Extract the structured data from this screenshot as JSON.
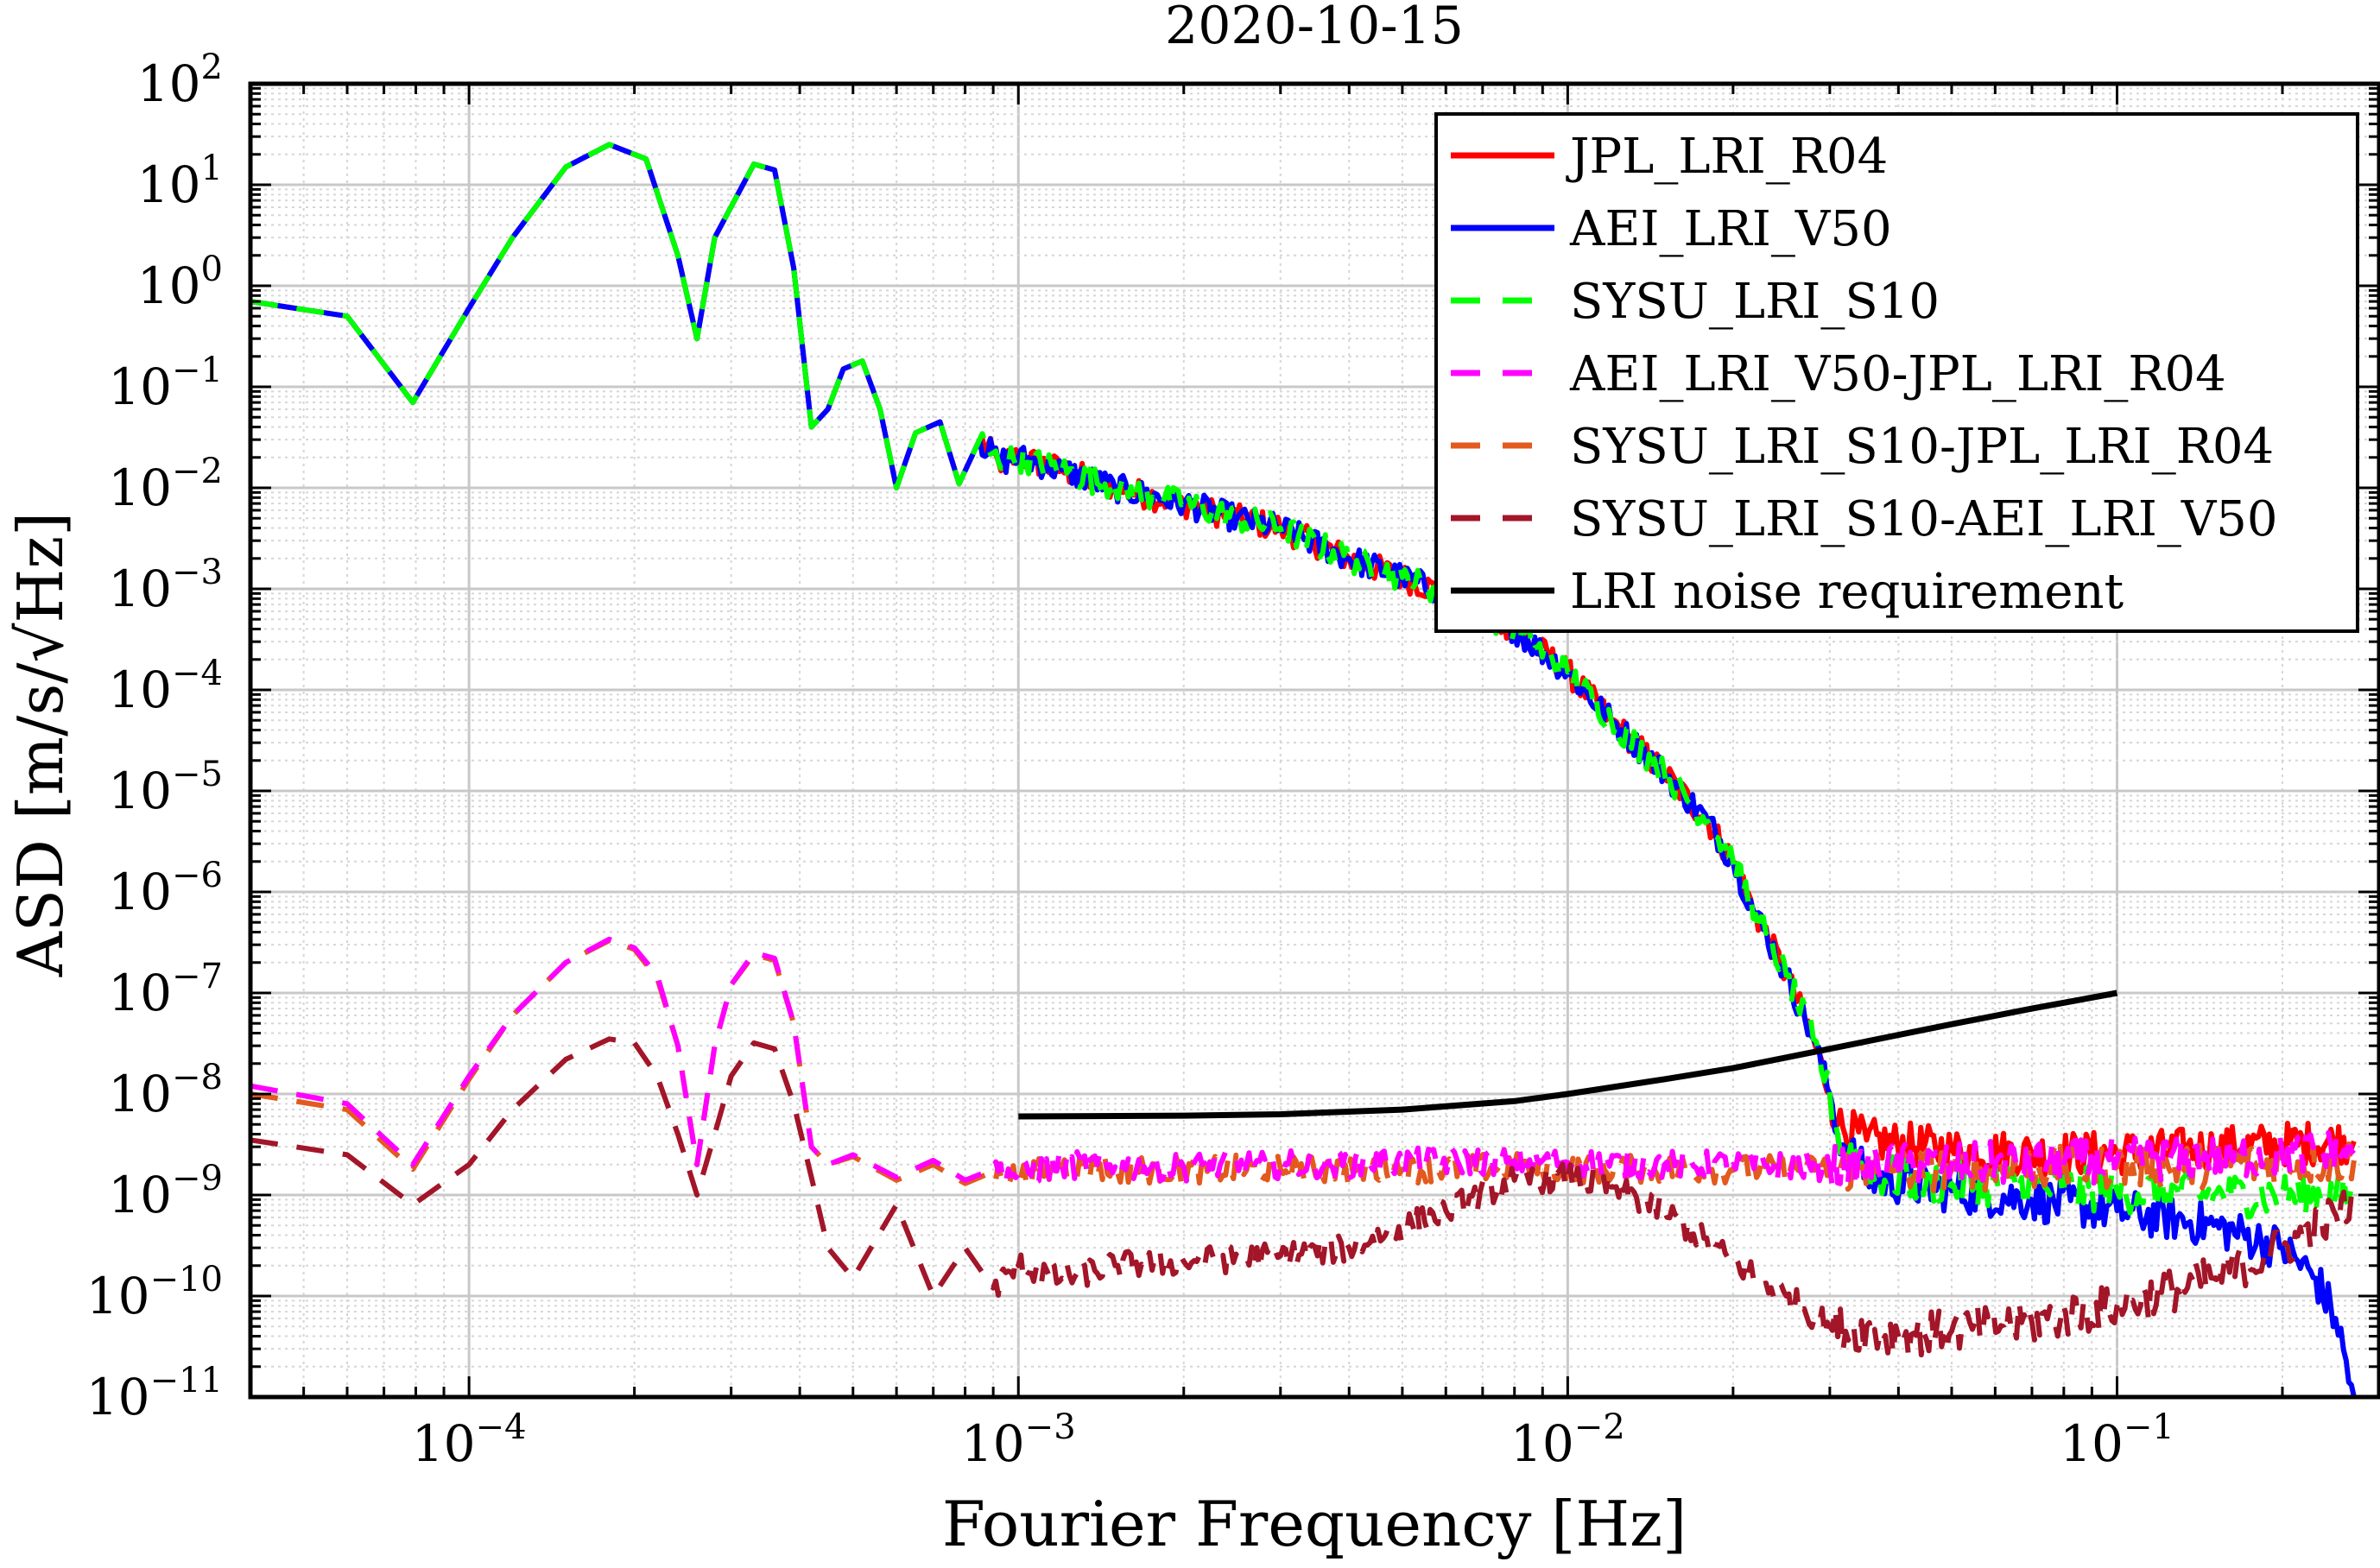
{
  "chart_data": {
    "type": "line",
    "title": "2020-10-15",
    "xlabel": "Fourier Frequency [Hz]",
    "ylabel": "ASD [m/s/√Hz]",
    "xscale": "log",
    "yscale": "log",
    "xlim": [
      4e-05,
      0.3
    ],
    "ylim": [
      1e-11,
      100
    ],
    "grid": true,
    "legend_position": "top-right",
    "x_ticks": [
      {
        "value": 0.0001,
        "base": "10",
        "exp": "−4"
      },
      {
        "value": 0.001,
        "base": "10",
        "exp": "−3"
      },
      {
        "value": 0.01,
        "base": "10",
        "exp": "−2"
      },
      {
        "value": 0.1,
        "base": "10",
        "exp": "−1"
      }
    ],
    "y_ticks": [
      {
        "value": 1e-11,
        "base": "10",
        "exp": "−11"
      },
      {
        "value": 1e-10,
        "base": "10",
        "exp": "−10"
      },
      {
        "value": 1e-09,
        "base": "10",
        "exp": "−9"
      },
      {
        "value": 1e-08,
        "base": "10",
        "exp": "−8"
      },
      {
        "value": 1e-07,
        "base": "10",
        "exp": "−7"
      },
      {
        "value": 1e-06,
        "base": "10",
        "exp": "−6"
      },
      {
        "value": 1e-05,
        "base": "10",
        "exp": "−5"
      },
      {
        "value": 0.0001,
        "base": "10",
        "exp": "−4"
      },
      {
        "value": 0.001,
        "base": "10",
        "exp": "−3"
      },
      {
        "value": 0.01,
        "base": "10",
        "exp": "−2"
      },
      {
        "value": 0.1,
        "base": "10",
        "exp": "−1"
      },
      {
        "value": 1,
        "base": "10",
        "exp": "0"
      },
      {
        "value": 10,
        "base": "10",
        "exp": "1"
      },
      {
        "value": 100,
        "base": "10",
        "exp": "2"
      }
    ],
    "series": [
      {
        "name": "JPL_LRI_R04",
        "color": "#ff0000",
        "dash": "solid",
        "x": [
          4e-05,
          6e-05,
          7.9e-05,
          0.0001,
          0.00012,
          0.00015,
          0.00018,
          0.00021,
          0.00024,
          0.00026,
          0.00028,
          0.00033,
          0.00036,
          0.00039,
          0.00042,
          0.00045,
          0.00048,
          0.00052,
          0.00056,
          0.0006,
          0.00065,
          0.00072,
          0.00078,
          0.00085,
          0.00092,
          0.001,
          0.0012,
          0.0015,
          0.002,
          0.0025,
          0.003,
          0.004,
          0.005,
          0.006,
          0.008,
          0.01,
          0.012,
          0.015,
          0.018,
          0.02,
          0.022,
          0.025,
          0.028,
          0.03,
          0.031,
          0.035,
          0.05,
          0.07,
          0.1,
          0.15,
          0.2,
          0.27
        ],
        "y": [
          0.7,
          0.5,
          0.07,
          0.6,
          3,
          15,
          25,
          18,
          2,
          0.3,
          3,
          16,
          14,
          1.5,
          0.04,
          0.06,
          0.15,
          0.18,
          0.06,
          0.01,
          0.035,
          0.045,
          0.011,
          0.03,
          0.018,
          0.02,
          0.015,
          0.01,
          0.007,
          0.005,
          0.004,
          0.002,
          0.0013,
          0.0009,
          0.0004,
          0.00015,
          5e-05,
          1.5e-05,
          5e-06,
          2e-06,
          6e-07,
          1.5e-07,
          3.5e-08,
          1e-08,
          5e-09,
          3.5e-09,
          2.8e-09,
          2.6e-09,
          2.6e-09,
          2.9e-09,
          3.2e-09,
          3.4e-09
        ]
      },
      {
        "name": "AEI_LRI_V50",
        "color": "#0000ff",
        "dash": "solid",
        "x": [
          4e-05,
          6e-05,
          7.9e-05,
          0.0001,
          0.00012,
          0.00015,
          0.00018,
          0.00021,
          0.00024,
          0.00026,
          0.00028,
          0.00033,
          0.00036,
          0.00039,
          0.00042,
          0.00045,
          0.00048,
          0.00052,
          0.00056,
          0.0006,
          0.00065,
          0.00072,
          0.00078,
          0.00085,
          0.00092,
          0.001,
          0.0012,
          0.0015,
          0.002,
          0.0025,
          0.003,
          0.004,
          0.005,
          0.006,
          0.008,
          0.01,
          0.012,
          0.015,
          0.018,
          0.02,
          0.022,
          0.025,
          0.028,
          0.03,
          0.031,
          0.035,
          0.05,
          0.07,
          0.1,
          0.15,
          0.2,
          0.23,
          0.25,
          0.27
        ],
        "y": [
          0.7,
          0.5,
          0.07,
          0.6,
          3,
          15,
          25,
          18,
          2,
          0.3,
          3,
          16,
          14,
          1.5,
          0.04,
          0.06,
          0.15,
          0.18,
          0.06,
          0.01,
          0.035,
          0.045,
          0.011,
          0.03,
          0.018,
          0.02,
          0.015,
          0.01,
          0.007,
          0.005,
          0.004,
          0.002,
          0.0013,
          0.0009,
          0.0004,
          0.00015,
          5e-05,
          1.5e-05,
          5e-06,
          2e-06,
          6e-07,
          1.5e-07,
          3.5e-08,
          1e-08,
          4e-09,
          1.5e-09,
          1.1e-09,
          9e-10,
          7e-10,
          5e-10,
          3e-10,
          1.5e-10,
          6e-11,
          1e-11
        ]
      },
      {
        "name": "SYSU_LRI_S10",
        "color": "#00ff00",
        "dash": "dashed",
        "x": [
          4e-05,
          6e-05,
          7.9e-05,
          0.0001,
          0.00012,
          0.00015,
          0.00018,
          0.00021,
          0.00024,
          0.00026,
          0.00028,
          0.00033,
          0.00036,
          0.00039,
          0.00042,
          0.00045,
          0.00048,
          0.00052,
          0.00056,
          0.0006,
          0.00065,
          0.00072,
          0.00078,
          0.00085,
          0.00092,
          0.001,
          0.0012,
          0.0015,
          0.002,
          0.0025,
          0.003,
          0.004,
          0.005,
          0.006,
          0.008,
          0.01,
          0.012,
          0.015,
          0.018,
          0.02,
          0.022,
          0.025,
          0.028,
          0.03,
          0.031,
          0.035,
          0.05,
          0.07,
          0.1,
          0.15,
          0.2,
          0.27
        ],
        "y": [
          0.7,
          0.5,
          0.07,
          0.6,
          3,
          15,
          25,
          18,
          2,
          0.3,
          3,
          16,
          14,
          1.5,
          0.04,
          0.06,
          0.15,
          0.18,
          0.06,
          0.01,
          0.035,
          0.045,
          0.011,
          0.03,
          0.018,
          0.02,
          0.015,
          0.01,
          0.007,
          0.005,
          0.004,
          0.002,
          0.0013,
          0.0009,
          0.0004,
          0.00015,
          5e-05,
          1.5e-05,
          5e-06,
          2e-06,
          6e-07,
          1.5e-07,
          3.5e-08,
          1e-08,
          4e-09,
          1.6e-09,
          1.3e-09,
          1.2e-09,
          1.1e-09,
          1e-09,
          1e-09,
          1e-09
        ]
      },
      {
        "name": "AEI_LRI_V50-JPL_LRI_R04",
        "color": "#ff00ff",
        "dash": "dashed",
        "x": [
          4e-05,
          6e-05,
          7.9e-05,
          0.0001,
          0.00012,
          0.00015,
          0.00018,
          0.0002,
          0.00022,
          0.00024,
          0.00026,
          0.00028,
          0.0003,
          0.00033,
          0.00036,
          0.00039,
          0.00042,
          0.00045,
          0.0005,
          0.0006,
          0.0007,
          0.0008,
          0.0009,
          0.001,
          0.0012,
          0.0015,
          0.002,
          0.003,
          0.005,
          0.008,
          0.01,
          0.015,
          0.02,
          0.03,
          0.05,
          0.1,
          0.2,
          0.27
        ],
        "y": [
          1.2e-08,
          8e-09,
          2e-09,
          1.5e-08,
          6e-08,
          2e-07,
          3.4e-07,
          2.8e-07,
          1.5e-07,
          3e-08,
          2e-09,
          3e-08,
          1.2e-07,
          2.5e-07,
          2.2e-07,
          5e-08,
          3e-09,
          2e-09,
          2.5e-09,
          1.5e-09,
          2.2e-09,
          1.4e-09,
          1.8e-09,
          1.6e-09,
          2e-09,
          1.9e-09,
          1.9e-09,
          2e-09,
          2.1e-09,
          2.2e-09,
          2.1e-09,
          2e-09,
          2e-09,
          1.9e-09,
          2e-09,
          2.2e-09,
          2.5e-09,
          2.8e-09
        ]
      },
      {
        "name": "SYSU_LRI_S10-JPL_LRI_R04",
        "color": "#e35a1e",
        "dash": "dashed",
        "x": [
          4e-05,
          6e-05,
          7.9e-05,
          0.0001,
          0.00012,
          0.00015,
          0.00018,
          0.0002,
          0.00022,
          0.00024,
          0.00026,
          0.00028,
          0.0003,
          0.00033,
          0.00036,
          0.00039,
          0.00042,
          0.00045,
          0.0005,
          0.0006,
          0.0007,
          0.0008,
          0.0009,
          0.001,
          0.0012,
          0.0015,
          0.002,
          0.003,
          0.005,
          0.008,
          0.01,
          0.015,
          0.02,
          0.03,
          0.05,
          0.1,
          0.2,
          0.27
        ],
        "y": [
          1e-08,
          7e-09,
          1.8e-09,
          1.4e-08,
          6e-08,
          2e-07,
          3.3e-07,
          2.7e-07,
          1.4e-07,
          3e-08,
          2e-09,
          3e-08,
          1.2e-07,
          2.4e-07,
          2.1e-07,
          5e-08,
          3e-09,
          2e-09,
          2.4e-09,
          1.4e-09,
          2e-09,
          1.3e-09,
          1.7e-09,
          1.5e-09,
          1.9e-09,
          1.8e-09,
          1.8e-09,
          1.8e-09,
          1.8e-09,
          1.9e-09,
          1.8e-09,
          1.8e-09,
          1.8e-09,
          1.8e-09,
          1.8e-09,
          1.9e-09,
          2e-09,
          2.2e-09
        ]
      },
      {
        "name": "SYSU_LRI_S10-AEI_LRI_V50",
        "color": "#a31528",
        "dash": "dashed",
        "x": [
          4e-05,
          6e-05,
          7.9e-05,
          0.0001,
          0.00012,
          0.00015,
          0.00018,
          0.0002,
          0.00022,
          0.00024,
          0.00026,
          0.00028,
          0.0003,
          0.00033,
          0.00036,
          0.00039,
          0.00042,
          0.00045,
          0.0005,
          0.0006,
          0.0007,
          0.0008,
          0.0009,
          0.001,
          0.0012,
          0.0015,
          0.002,
          0.003,
          0.004,
          0.006,
          0.008,
          0.01,
          0.012,
          0.015,
          0.02,
          0.025,
          0.03,
          0.04,
          0.05,
          0.07,
          0.1,
          0.15,
          0.2,
          0.27
        ],
        "y": [
          3.5e-09,
          2.5e-09,
          8e-10,
          2e-09,
          7e-09,
          2.2e-08,
          3.5e-08,
          3.2e-08,
          1.5e-08,
          4e-09,
          1e-09,
          4e-09,
          1.5e-08,
          3.2e-08,
          2.8e-08,
          8e-09,
          1.5e-09,
          3e-10,
          1.5e-10,
          8e-10,
          1e-10,
          3e-10,
          1.2e-10,
          2e-10,
          1.5e-10,
          2e-10,
          2.2e-10,
          2.5e-10,
          3e-10,
          7e-10,
          1.4e-09,
          1.5e-09,
          1.2e-09,
          7e-10,
          2.2e-10,
          1e-10,
          5e-11,
          4e-11,
          4.5e-11,
          5.5e-11,
          8e-11,
          1.5e-10,
          3e-10,
          8e-10
        ]
      },
      {
        "name": "LRI noise requirement",
        "color": "#000000",
        "dash": "solid",
        "x": [
          0.001,
          0.002,
          0.003,
          0.005,
          0.008,
          0.01,
          0.015,
          0.02,
          0.03,
          0.05,
          0.07,
          0.1
        ],
        "y": [
          6e-09,
          6.1e-09,
          6.3e-09,
          7e-09,
          8.5e-09,
          1e-08,
          1.4e-08,
          1.8e-08,
          2.8e-08,
          4.9e-08,
          7e-08,
          1e-07
        ]
      }
    ]
  }
}
